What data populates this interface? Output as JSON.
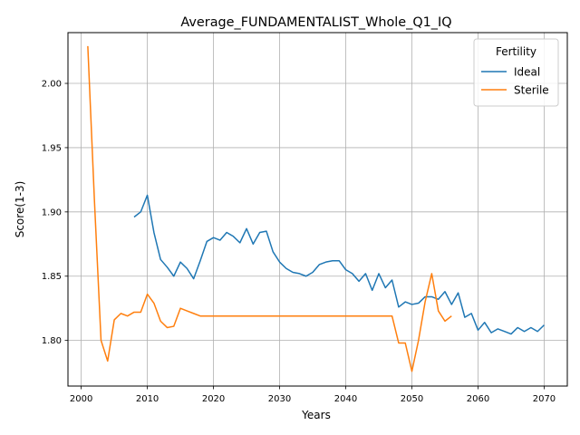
{
  "chart_data": {
    "type": "line",
    "title": "Average_FUNDAMENTALIST_Whole_Q1_IQ",
    "xlabel": "Years",
    "ylabel": "Score(1-3)",
    "xlim": [
      1998,
      2073.5
    ],
    "ylim": [
      1.7645,
      2.0395
    ],
    "xticks": [
      2000,
      2010,
      2020,
      2030,
      2040,
      2050,
      2060,
      2070
    ],
    "xtick_labels": [
      "2000",
      "2010",
      "2020",
      "2030",
      "2040",
      "2050",
      "2060",
      "2070"
    ],
    "yticks": [
      1.8,
      1.85,
      1.9,
      1.95,
      2.0
    ],
    "ytick_labels": [
      "1.80",
      "1.85",
      "1.90",
      "1.95",
      "2.00"
    ],
    "grid": true,
    "legend": {
      "title": "Fertility",
      "placement": "top-right"
    },
    "series": [
      {
        "name": "Ideal",
        "color": "#1f77b4",
        "x": [
          2008,
          2009,
          2010,
          2011,
          2012,
          2013,
          2014,
          2015,
          2016,
          2017,
          2018,
          2019,
          2020,
          2021,
          2022,
          2023,
          2024,
          2025,
          2026,
          2027,
          2028,
          2029,
          2030,
          2031,
          2032,
          2033,
          2034,
          2035,
          2036,
          2037,
          2038,
          2039,
          2040,
          2041,
          2042,
          2043,
          2044,
          2045,
          2046,
          2047,
          2048,
          2049,
          2050,
          2051,
          2052,
          2053,
          2054,
          2055,
          2056,
          2057,
          2058,
          2059,
          2060,
          2061,
          2062,
          2063,
          2064,
          2065,
          2066,
          2067,
          2068,
          2069,
          2070
        ],
        "y": [
          1.896,
          1.9,
          1.913,
          1.884,
          1.863,
          1.857,
          1.85,
          1.861,
          1.856,
          1.848,
          1.862,
          1.877,
          1.88,
          1.878,
          1.884,
          1.881,
          1.876,
          1.887,
          1.875,
          1.884,
          1.885,
          1.869,
          1.861,
          1.856,
          1.853,
          1.852,
          1.85,
          1.853,
          1.859,
          1.861,
          1.862,
          1.862,
          1.855,
          1.852,
          1.846,
          1.852,
          1.839,
          1.852,
          1.841,
          1.847,
          1.826,
          1.83,
          1.828,
          1.829,
          1.834,
          1.834,
          1.832,
          1.838,
          1.828,
          1.837,
          1.818,
          1.821,
          1.808,
          1.814,
          1.806,
          1.809,
          1.807,
          1.805,
          1.81,
          1.807,
          1.81,
          1.807,
          1.812
        ]
      },
      {
        "name": "Sterile",
        "color": "#ff7f0e",
        "x": [
          2001,
          2002,
          2003,
          2004,
          2005,
          2006,
          2007,
          2008,
          2009,
          2010,
          2011,
          2012,
          2013,
          2014,
          2015,
          2016,
          2017,
          2018,
          2019,
          2020,
          2021,
          2022,
          2023,
          2024,
          2025,
          2026,
          2027,
          2028,
          2029,
          2030,
          2031,
          2032,
          2033,
          2034,
          2035,
          2036,
          2037,
          2038,
          2039,
          2040,
          2041,
          2042,
          2043,
          2044,
          2045,
          2046,
          2047,
          2048,
          2049,
          2050,
          2051,
          2052,
          2053,
          2054,
          2055,
          2056
        ],
        "y": [
          2.029,
          1.909,
          1.8,
          1.784,
          1.816,
          1.821,
          1.819,
          1.822,
          1.822,
          1.836,
          1.829,
          1.815,
          1.81,
          1.811,
          1.825,
          1.823,
          1.821,
          1.819,
          1.819,
          1.819,
          1.819,
          1.819,
          1.819,
          1.819,
          1.819,
          1.819,
          1.819,
          1.819,
          1.819,
          1.819,
          1.819,
          1.819,
          1.819,
          1.819,
          1.819,
          1.819,
          1.819,
          1.819,
          1.819,
          1.819,
          1.819,
          1.819,
          1.819,
          1.819,
          1.819,
          1.819,
          1.819,
          1.798,
          1.798,
          1.776,
          1.8,
          1.83,
          1.852,
          1.823,
          1.815,
          1.819
        ]
      }
    ]
  }
}
